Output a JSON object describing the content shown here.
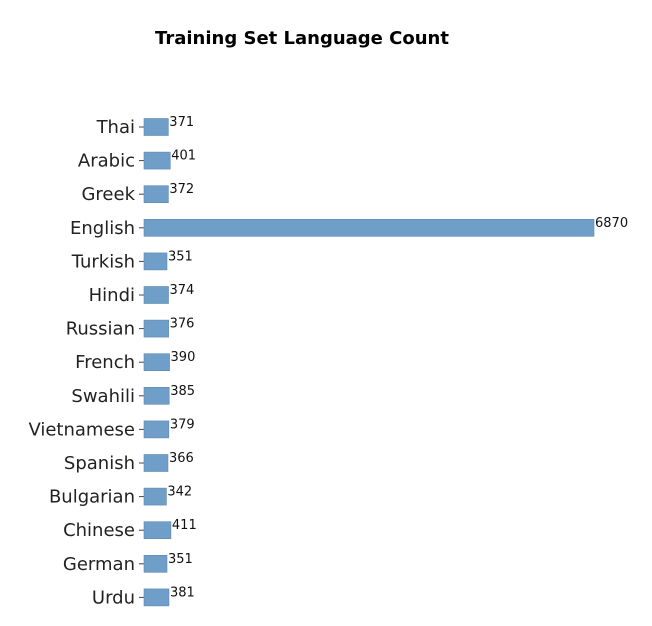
{
  "chart_data": {
    "type": "bar",
    "orientation": "horizontal",
    "title": "Training Set Language Count",
    "xlabel": "",
    "ylabel": "",
    "categories": [
      "Thai",
      "Arabic",
      "Greek",
      "English",
      "Turkish",
      "Hindi",
      "Russian",
      "French",
      "Swahili",
      "Vietnamese",
      "Spanish",
      "Bulgarian",
      "Chinese",
      "German",
      "Urdu"
    ],
    "values": [
      371,
      401,
      372,
      6870,
      351,
      374,
      376,
      390,
      385,
      379,
      366,
      342,
      411,
      351,
      381
    ],
    "xlim": [
      0,
      6870
    ],
    "grid": false,
    "axes_visible": false,
    "bar_color": "#6f9ec8"
  }
}
